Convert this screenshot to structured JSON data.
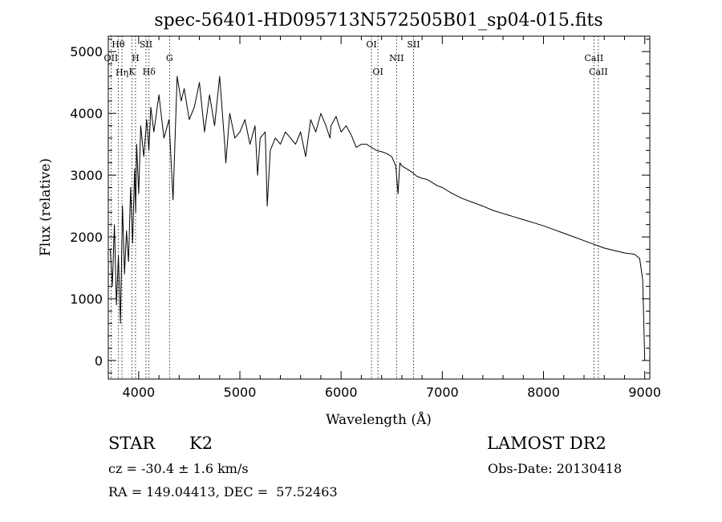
{
  "chart_data": {
    "type": "line",
    "title": "spec-56401-HD095713N572505B01_sp04-015.fits",
    "xlabel": "Wavelength (Å)",
    "ylabel": "Flux (relative)",
    "xlim": [
      3700,
      9050
    ],
    "ylim": [
      -300,
      5250
    ],
    "x_ticks": [
      4000,
      5000,
      6000,
      7000,
      8000,
      9000
    ],
    "y_ticks": [
      0,
      1000,
      2000,
      3000,
      4000,
      5000
    ],
    "grid": false,
    "series": [
      {
        "values_x": [
          3720,
          3740,
          3760,
          3780,
          3800,
          3820,
          3840,
          3860,
          3880,
          3900,
          3920,
          3940,
          3960,
          3970,
          3980,
          4000,
          4020,
          4050,
          4080,
          4101,
          4120,
          4150,
          4200,
          4250,
          4300,
          4340,
          4380,
          4420,
          4450,
          4500,
          4550,
          4600,
          4650,
          4700,
          4750,
          4800,
          4850,
          4861,
          4900,
          4950,
          5000,
          5050,
          5100,
          5150,
          5175,
          5200,
          5250,
          5270,
          5300,
          5350,
          5400,
          5450,
          5500,
          5550,
          5600,
          5650,
          5700,
          5750,
          5800,
          5850,
          5890,
          5900,
          5950,
          6000,
          6050,
          6100,
          6150,
          6200,
          6250,
          6300,
          6350,
          6400,
          6450,
          6500,
          6540,
          6563,
          6580,
          6600,
          6650,
          6700,
          6750,
          6800,
          6850,
          6900,
          6950,
          7000,
          7100,
          7200,
          7300,
          7400,
          7500,
          7600,
          7700,
          7800,
          7900,
          8000,
          8100,
          8200,
          8300,
          8400,
          8500,
          8600,
          8700,
          8800,
          8900,
          8950,
          8980,
          9000
        ],
        "values_y": [
          1800,
          1200,
          2200,
          900,
          1700,
          600,
          2500,
          1400,
          2100,
          1600,
          2800,
          1900,
          3100,
          2400,
          3500,
          2700,
          3800,
          3300,
          3900,
          3400,
          4100,
          3700,
          4300,
          3600,
          3900,
          2600,
          4600,
          4200,
          4400,
          3900,
          4100,
          4500,
          3700,
          4300,
          3800,
          4600,
          3500,
          3200,
          4000,
          3600,
          3700,
          3900,
          3500,
          3800,
          3000,
          3600,
          3700,
          2500,
          3400,
          3600,
          3500,
          3700,
          3600,
          3500,
          3700,
          3300,
          3900,
          3700,
          4000,
          3800,
          3600,
          3800,
          3950,
          3700,
          3800,
          3650,
          3450,
          3500,
          3500,
          3450,
          3400,
          3380,
          3350,
          3300,
          3150,
          2700,
          3200,
          3150,
          3100,
          3050,
          2980,
          2950,
          2930,
          2880,
          2830,
          2800,
          2700,
          2620,
          2560,
          2500,
          2430,
          2380,
          2330,
          2280,
          2230,
          2180,
          2120,
          2060,
          2000,
          1940,
          1880,
          1820,
          1780,
          1740,
          1720,
          1650,
          1300,
          0
        ]
      }
    ],
    "lines": [
      {
        "x": 3727,
        "label": "OII"
      },
      {
        "x": 3798,
        "label": "Hθ"
      },
      {
        "x": 3835,
        "label": "Hη"
      },
      {
        "x": 3934,
        "label": "K"
      },
      {
        "x": 3969,
        "label": "H"
      },
      {
        "x": 4072,
        "label": "SII"
      },
      {
        "x": 4102,
        "label": "Hδ"
      },
      {
        "x": 4305,
        "label": "G"
      },
      {
        "x": 6300,
        "label": "OI"
      },
      {
        "x": 6364,
        "label": "OI"
      },
      {
        "x": 6548,
        "label": "NII"
      },
      {
        "x": 6716,
        "label": "SII"
      },
      {
        "x": 8498,
        "label": "CaII"
      },
      {
        "x": 8542,
        "label": "CaII"
      }
    ]
  },
  "footer": {
    "object_class": "STAR",
    "subclass": "K2",
    "survey": "LAMOST DR2",
    "redshift": "cz = -30.4 ± 1.6 km/s",
    "obs_date": "Obs-Date: 20130418",
    "coords": "RA = 149.04413, DEC =  57.52463"
  },
  "colors": {
    "spectrum": "#000000",
    "marker_lines": "#000000"
  }
}
